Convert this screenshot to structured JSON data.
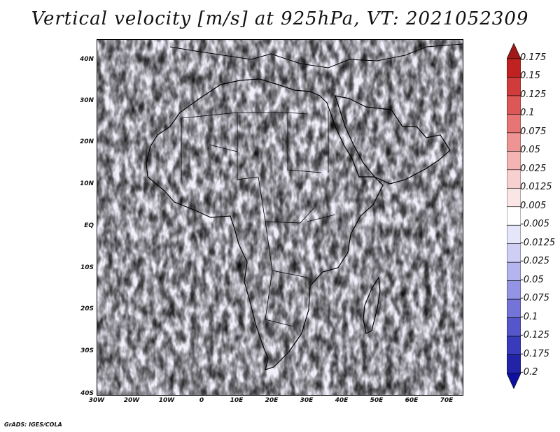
{
  "title": "Vertical velocity [m/s] at 925hPa, VT: 2021052309",
  "credit": "GrADS: IGES/COLA",
  "lat_labels": [
    "40N",
    "30N",
    "20N",
    "10N",
    "EQ",
    "10S",
    "20S",
    "30S",
    "40S"
  ],
  "lon_labels": [
    "30W",
    "20W",
    "10W",
    "0",
    "10E",
    "20E",
    "30E",
    "40E",
    "50E",
    "60E",
    "70E"
  ],
  "colorbar": {
    "labels": [
      "0.175",
      "0.15",
      "0.125",
      "0.1",
      "0.075",
      "0.05",
      "0.025",
      "0.0125",
      "0.005",
      "-0.005",
      "-0.0125",
      "-0.025",
      "-0.05",
      "-0.075",
      "-0.1",
      "-0.125",
      "-0.175",
      "-0.2"
    ],
    "colors": [
      "#a01818",
      "#c02222",
      "#d23b3b",
      "#de5757",
      "#e77575",
      "#ee9494",
      "#f4b4b4",
      "#f8d0d0",
      "#fbe6e6",
      "#ffffff",
      "#e6e6fb",
      "#cfcff5",
      "#b4b4ee",
      "#9494e4",
      "#7474d8",
      "#5656cb",
      "#3a3abd",
      "#2323a8",
      "#1010a0"
    ]
  },
  "legend_unit": "m/s"
}
